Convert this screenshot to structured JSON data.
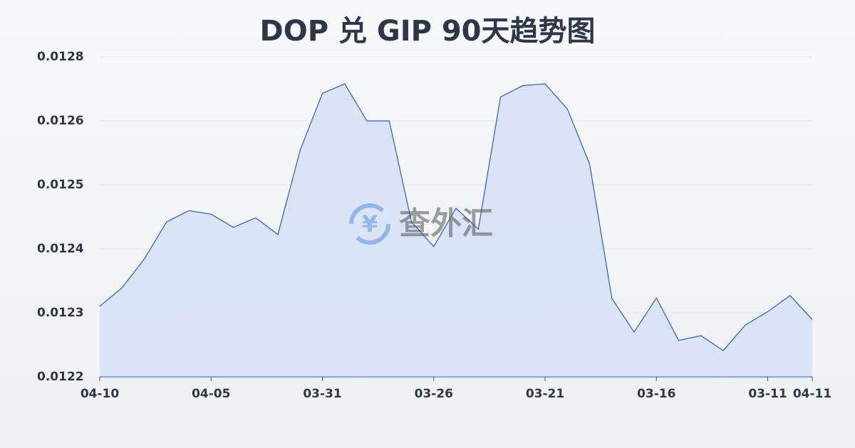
{
  "chart_data": {
    "type": "area",
    "title": "DOP 兑 GIP 90天趋势图",
    "watermark": "查外汇",
    "color": "#2a5cb8",
    "fill": "#d6e1f7",
    "grid": true,
    "categories": [
      "04-10",
      null,
      null,
      null,
      null,
      "04-05",
      null,
      null,
      null,
      null,
      "03-31",
      null,
      null,
      null,
      null,
      "03-26",
      null,
      null,
      null,
      null,
      "03-21",
      null,
      null,
      null,
      null,
      "03-16",
      null,
      null,
      null,
      null,
      "03-11",
      null,
      "04-11"
    ],
    "values": [
      0.012335,
      0.012366,
      0.012414,
      0.012476,
      0.012495,
      0.012489,
      0.012467,
      0.012483,
      0.012455,
      0.012596,
      0.012691,
      0.012707,
      0.012645,
      0.012645,
      0.012476,
      0.012435,
      0.012499,
      0.012464,
      0.012685,
      0.012704,
      0.012707,
      0.012665,
      0.012573,
      0.012348,
      0.012292,
      0.012349,
      0.012278,
      0.012286,
      0.012261,
      0.012304,
      0.012326,
      0.012353,
      0.012313
    ],
    "ylim": [
      0.012217,
      0.012752
    ],
    "yticks": [
      {
        "value": 0.012217,
        "label": "0.0122"
      },
      {
        "value": 0.012324,
        "label": "0.0123"
      },
      {
        "value": 0.012431,
        "label": "0.0124"
      },
      {
        "value": 0.012538,
        "label": "0.0125"
      },
      {
        "value": 0.012645,
        "label": "0.0126"
      },
      {
        "value": 0.012752,
        "label": "0.0128"
      }
    ]
  }
}
